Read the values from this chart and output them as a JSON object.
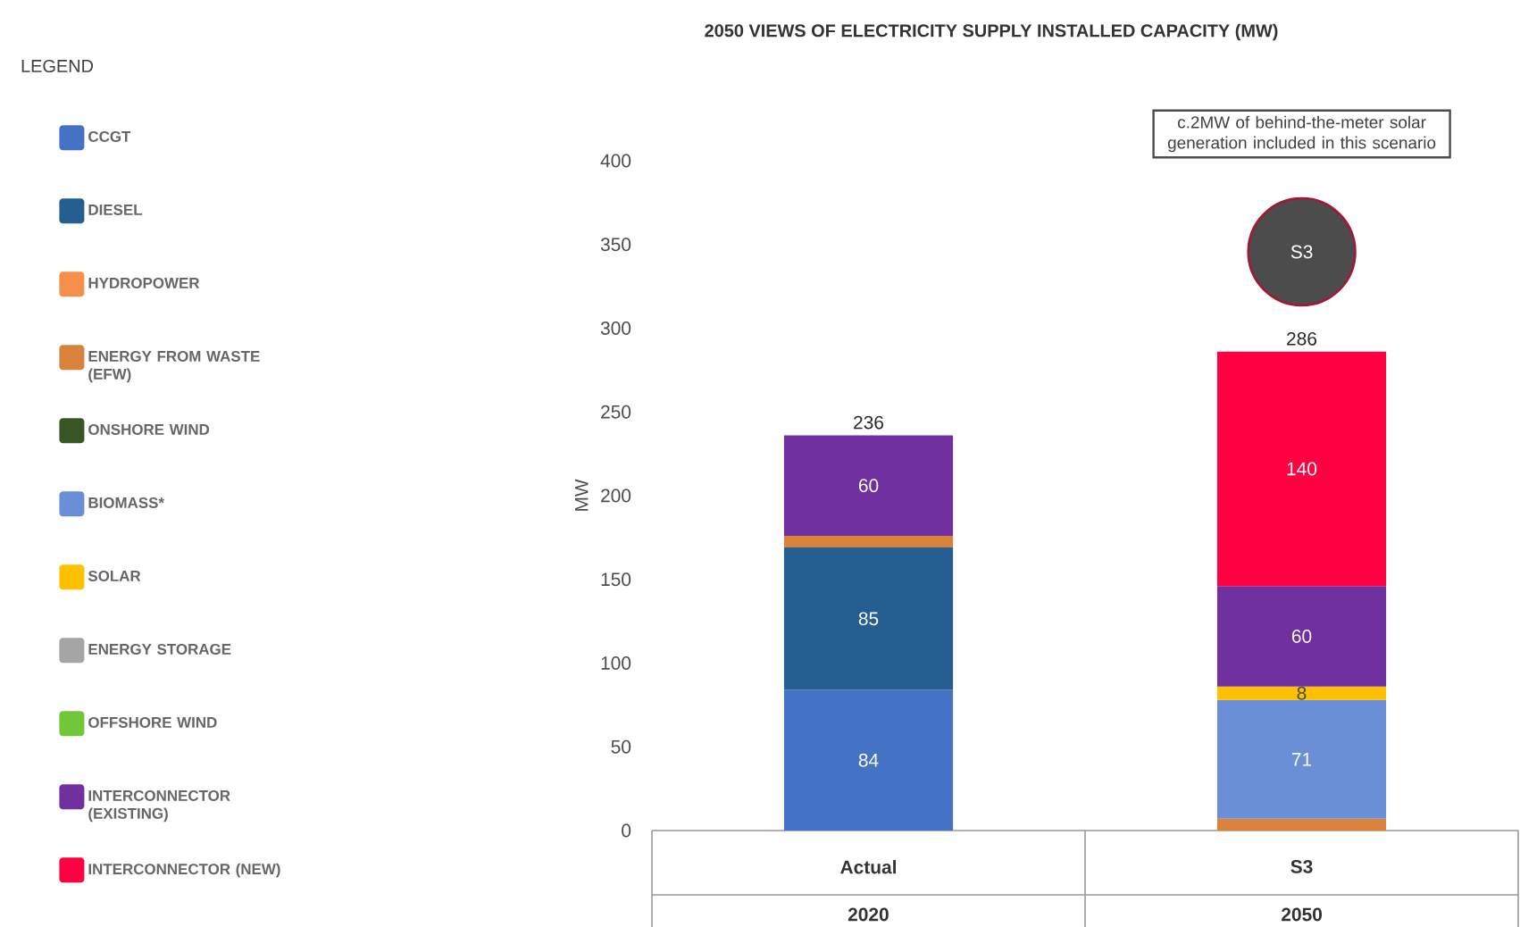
{
  "chart_data": {
    "type": "bar",
    "stacked": true,
    "title": "2050 VIEWS OF ELECTRICITY SUPPLY INSTALLED CAPACITY (MW)",
    "ylabel": "MW",
    "legend_title": "LEGEND",
    "legend": "left",
    "grid": false,
    "categories": [
      "Actual",
      "S3"
    ],
    "ylim": [
      0,
      400
    ],
    "yticks": [
      0,
      50,
      100,
      150,
      200,
      250,
      300,
      350,
      400
    ],
    "series": [
      {
        "name": "CCGT",
        "color": "#4472c4",
        "values": [
          84,
          null
        ],
        "value_labels": [
          "84",
          null
        ]
      },
      {
        "name": "DIESEL",
        "color": "#255e91",
        "values": [
          85,
          null
        ],
        "value_labels": [
          "85",
          null
        ]
      },
      {
        "name": "HYDROPOWER",
        "color": "#f4904a",
        "values": [
          null,
          null
        ]
      },
      {
        "name": "ENERGY FROM WASTE (EFW)",
        "color": "#d9823b",
        "values": [
          7,
          7
        ],
        "value_labels": [
          null,
          null
        ]
      },
      {
        "name": "ONSHORE WIND",
        "color": "#375623",
        "values": [
          null,
          null
        ]
      },
      {
        "name": "BIOMASS*",
        "color": "#6b8fd6",
        "values": [
          null,
          71
        ],
        "value_labels": [
          null,
          "71"
        ]
      },
      {
        "name": "SOLAR",
        "color": "#ffc000",
        "values": [
          null,
          8
        ],
        "value_labels": [
          null,
          "8"
        ]
      },
      {
        "name": "ENERGY STORAGE",
        "color": "#a5a5a5",
        "values": [
          null,
          null
        ]
      },
      {
        "name": "OFFSHORE WIND",
        "color": "#70c738",
        "values": [
          null,
          null
        ]
      },
      {
        "name": "INTERCONNECTOR (EXISTING)",
        "color": "#7030a0",
        "values": [
          60,
          60
        ],
        "value_labels": [
          "60",
          "60"
        ]
      },
      {
        "name": "INTERCONNECTOR (NEW)",
        "color": "#ff0040",
        "values": [
          null,
          140
        ],
        "value_labels": [
          null,
          "140"
        ]
      }
    ],
    "totals": [
      "236",
      "286"
    ],
    "annotations": [
      "c.2MW of behind-the-meter solar generation included in this scenario",
      "S3",
      "2020",
      "2050"
    ]
  }
}
